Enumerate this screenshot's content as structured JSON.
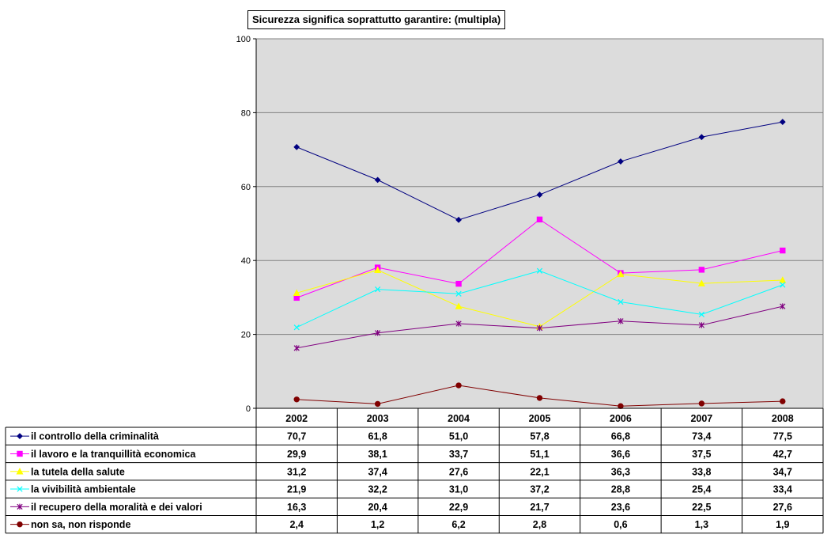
{
  "chart_data": {
    "type": "line",
    "title": "Sicurezza significa soprattutto garantire: (multipla)",
    "xlabel": "",
    "ylabel": "",
    "ylim": [
      0,
      100
    ],
    "yticks": [
      "0",
      "20",
      "40",
      "60",
      "80",
      "100"
    ],
    "grid": true,
    "legend": "data-table",
    "categories": [
      "2002",
      "2003",
      "2004",
      "2005",
      "2006",
      "2007",
      "2008"
    ],
    "series": [
      {
        "name": "il controllo della criminalità",
        "color": "#000080",
        "marker": "diamond",
        "values": [
          70.7,
          61.8,
          51.0,
          57.8,
          66.8,
          73.4,
          77.5
        ],
        "labels": [
          "70,7",
          "61,8",
          "51,0",
          "57,8",
          "66,8",
          "73,4",
          "77,5"
        ]
      },
      {
        "name": "il lavoro e la tranquillità economica",
        "color": "#ff00ff",
        "marker": "square",
        "values": [
          29.9,
          38.1,
          33.7,
          51.1,
          36.6,
          37.5,
          42.7
        ],
        "labels": [
          "29,9",
          "38,1",
          "33,7",
          "51,1",
          "36,6",
          "37,5",
          "42,7"
        ]
      },
      {
        "name": "la tutela della salute",
        "color": "#ffff00",
        "marker": "triangle",
        "values": [
          31.2,
          37.4,
          27.6,
          22.1,
          36.3,
          33.8,
          34.7
        ],
        "labels": [
          "31,2",
          "37,4",
          "27,6",
          "22,1",
          "36,3",
          "33,8",
          "34,7"
        ]
      },
      {
        "name": "la vivibilità ambientale",
        "color": "#00ffff",
        "marker": "x",
        "values": [
          21.9,
          32.2,
          31.0,
          37.2,
          28.8,
          25.4,
          33.4
        ],
        "labels": [
          "21,9",
          "32,2",
          "31,0",
          "37,2",
          "28,8",
          "25,4",
          "33,4"
        ]
      },
      {
        "name": "il recupero della moralità e dei valori",
        "color": "#800080",
        "marker": "star",
        "values": [
          16.3,
          20.4,
          22.9,
          21.7,
          23.6,
          22.5,
          27.6
        ],
        "labels": [
          "16,3",
          "20,4",
          "22,9",
          "21,7",
          "23,6",
          "22,5",
          "27,6"
        ]
      },
      {
        "name": "non sa, non risponde",
        "color": "#800000",
        "marker": "circle",
        "values": [
          2.4,
          1.2,
          6.2,
          2.8,
          0.6,
          1.3,
          1.9
        ],
        "labels": [
          "2,4",
          "1,2",
          "6,2",
          "2,8",
          "0,6",
          "1,3",
          "1,9"
        ]
      }
    ]
  },
  "colors": {
    "plot_background": "#dcdcdc",
    "gridline": "#808080"
  }
}
